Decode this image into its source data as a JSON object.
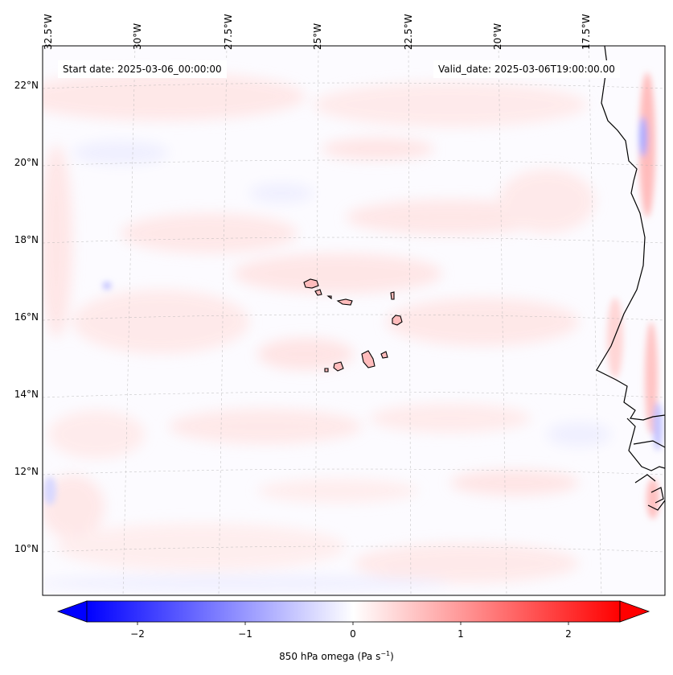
{
  "map": {
    "longitude_labels": [
      "32.5°W",
      "30°W",
      "27.5°W",
      "25°W",
      "22.5°W",
      "20°W",
      "17.5°W"
    ],
    "latitude_labels": [
      "22°N",
      "20°N",
      "18°N",
      "16°N",
      "14°N",
      "12°N",
      "10°N"
    ],
    "start_date_label": "Start date: 2025-03-06_00:00:00",
    "valid_date_label": "Valid_date: 2025-03-06T19:00:00.00",
    "colors": {
      "negative": "#0000ff",
      "positive": "#ff0000",
      "neutral": "#ffffff",
      "coastline": "#000000",
      "gridline": "#b0b0b0"
    }
  },
  "colorbar": {
    "tick_labels": [
      "−2",
      "−1",
      "0",
      "1",
      "2"
    ],
    "title_text": "850 hPa omega (Pa s",
    "title_superscript": "−1",
    "title_close": ")",
    "range": [
      -2.6,
      2.6
    ]
  }
}
